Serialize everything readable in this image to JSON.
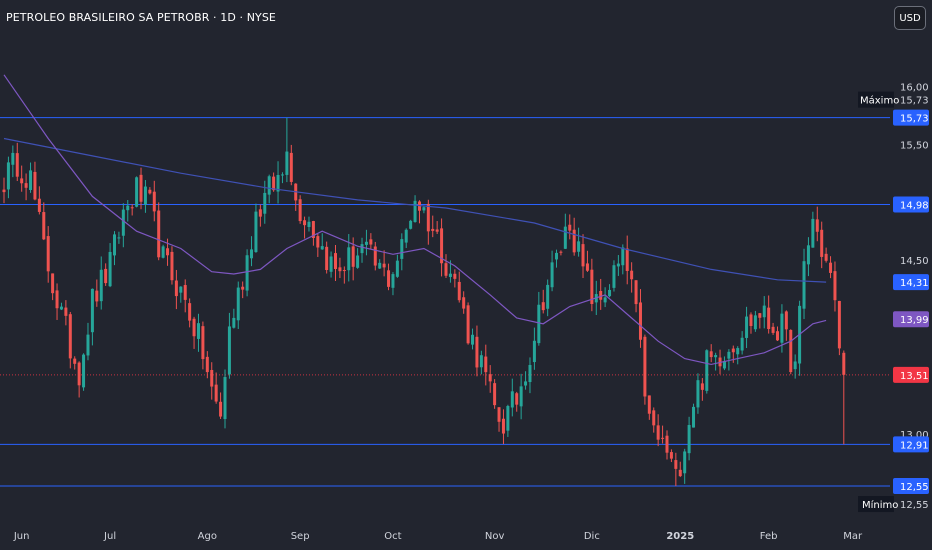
{
  "header": {
    "title": "PETROLEO BRASILEIRO SA PETROBR · 1D · NYSE",
    "currency_button": "USD"
  },
  "colors": {
    "background": "#22252f",
    "up": "#26a69a",
    "down": "#ef5350",
    "hline": "#2962ff",
    "ma_fast": "#7e57c2",
    "ma_slow": "#3f51b5",
    "last_price": "#f23645"
  },
  "chart_data": {
    "type": "candlestick",
    "symbol": "PETROLEO BRASILEIRO SA PETROBR",
    "interval": "1D",
    "exchange": "NYSE",
    "ylim": [
      12.3,
      16.4
    ],
    "y_ticks": [
      "16,00",
      "15,50",
      "14,50",
      "13,00"
    ],
    "x_tick_labels": [
      "Jun",
      "Jul",
      "Ago",
      "Sep",
      "Oct",
      "Nov",
      "Dic",
      "2025",
      "Feb",
      "Mar"
    ],
    "x_tick_index": [
      4,
      24,
      46,
      67,
      88,
      111,
      133,
      153,
      173,
      192
    ],
    "horizontal_lines": [
      15.73,
      14.98,
      12.91,
      12.55
    ],
    "price_tags": [
      {
        "label": "15,73",
        "value": 15.73,
        "color": "#2962ff"
      },
      {
        "label": "14,98",
        "value": 14.98,
        "color": "#2962ff"
      },
      {
        "label": "14,31",
        "value": 14.31,
        "color": "#2962ff"
      },
      {
        "label": "13,99",
        "value": 13.99,
        "color": "#7e57c2"
      },
      {
        "label": "13,51",
        "value": 13.51,
        "color": "#f23645"
      },
      {
        "label": "12,91",
        "value": 12.91,
        "color": "#2962ff"
      },
      {
        "label": "12,55",
        "value": 12.55,
        "color": "#2962ff"
      }
    ],
    "extremes": {
      "max_label": "Máximo",
      "max_value": "15,73",
      "min_label": "Mínimo",
      "min_value": "12,55"
    },
    "last_price": 13.51,
    "anchors": [
      [
        0,
        15.2
      ],
      [
        3,
        15.35
      ],
      [
        6,
        15.2
      ],
      [
        9,
        14.6
      ],
      [
        12,
        14.15
      ],
      [
        15,
        13.75
      ],
      [
        17,
        13.55
      ],
      [
        20,
        14.15
      ],
      [
        24,
        14.45
      ],
      [
        27,
        14.9
      ],
      [
        30,
        15.1
      ],
      [
        33,
        14.95
      ],
      [
        36,
        14.5
      ],
      [
        39,
        14.3
      ],
      [
        42,
        14.05
      ],
      [
        45,
        13.7
      ],
      [
        47,
        13.35
      ],
      [
        49,
        13.15
      ],
      [
        51,
        13.9
      ],
      [
        54,
        14.35
      ],
      [
        57,
        14.9
      ],
      [
        60,
        15.1
      ],
      [
        63,
        15.25
      ],
      [
        64,
        15.55
      ],
      [
        66,
        15.0
      ],
      [
        69,
        14.85
      ],
      [
        72,
        14.6
      ],
      [
        75,
        14.4
      ],
      [
        78,
        14.5
      ],
      [
        81,
        14.6
      ],
      [
        84,
        14.45
      ],
      [
        87,
        14.35
      ],
      [
        90,
        14.6
      ],
      [
        93,
        15.05
      ],
      [
        96,
        14.85
      ],
      [
        99,
        14.6
      ],
      [
        102,
        14.3
      ],
      [
        105,
        13.9
      ],
      [
        108,
        13.6
      ],
      [
        111,
        13.2
      ],
      [
        113,
        13.1
      ],
      [
        116,
        13.3
      ],
      [
        119,
        13.7
      ],
      [
        122,
        14.2
      ],
      [
        125,
        14.5
      ],
      [
        128,
        14.85
      ],
      [
        131,
        14.4
      ],
      [
        134,
        14.1
      ],
      [
        137,
        14.3
      ],
      [
        140,
        14.5
      ],
      [
        142,
        14.3
      ],
      [
        144,
        13.7
      ],
      [
        146,
        13.1
      ],
      [
        148,
        12.95
      ],
      [
        150,
        12.85
      ],
      [
        152,
        12.6
      ],
      [
        154,
        12.95
      ],
      [
        156,
        13.3
      ],
      [
        159,
        13.6
      ],
      [
        162,
        13.7
      ],
      [
        165,
        13.8
      ],
      [
        168,
        13.95
      ],
      [
        171,
        14.05
      ],
      [
        173,
        13.95
      ],
      [
        176,
        13.9
      ],
      [
        179,
        13.55
      ],
      [
        181,
        14.45
      ],
      [
        183,
        14.85
      ],
      [
        185,
        14.6
      ],
      [
        187,
        14.35
      ],
      [
        190,
        13.51
      ]
    ],
    "ma_fast_points": [
      [
        0,
        16.1
      ],
      [
        10,
        15.55
      ],
      [
        20,
        15.05
      ],
      [
        30,
        14.75
      ],
      [
        40,
        14.6
      ],
      [
        47,
        14.4
      ],
      [
        52,
        14.38
      ],
      [
        58,
        14.42
      ],
      [
        64,
        14.6
      ],
      [
        72,
        14.75
      ],
      [
        80,
        14.62
      ],
      [
        88,
        14.55
      ],
      [
        95,
        14.6
      ],
      [
        102,
        14.45
      ],
      [
        110,
        14.2
      ],
      [
        116,
        14.0
      ],
      [
        122,
        13.95
      ],
      [
        128,
        14.1
      ],
      [
        136,
        14.2
      ],
      [
        142,
        14.0
      ],
      [
        148,
        13.8
      ],
      [
        154,
        13.65
      ],
      [
        160,
        13.6
      ],
      [
        166,
        13.65
      ],
      [
        172,
        13.7
      ],
      [
        178,
        13.8
      ],
      [
        183,
        13.95
      ],
      [
        186,
        13.98
      ]
    ],
    "ma_slow_points": [
      [
        0,
        15.55
      ],
      [
        20,
        15.4
      ],
      [
        40,
        15.25
      ],
      [
        60,
        15.12
      ],
      [
        80,
        15.02
      ],
      [
        100,
        14.95
      ],
      [
        120,
        14.82
      ],
      [
        140,
        14.6
      ],
      [
        160,
        14.42
      ],
      [
        175,
        14.33
      ],
      [
        186,
        14.31
      ]
    ]
  }
}
